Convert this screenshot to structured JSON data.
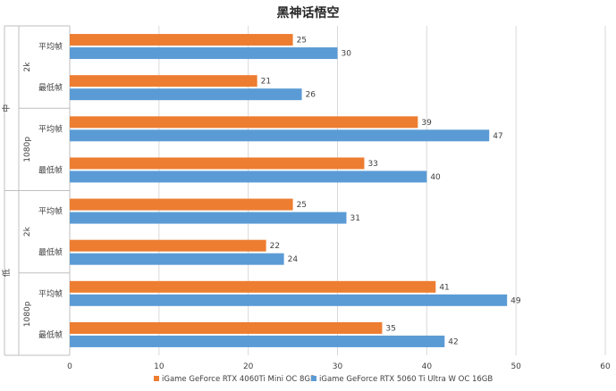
{
  "chart_data": {
    "type": "bar",
    "orientation": "horizontal",
    "title": "黑神话悟空",
    "xlim": [
      0,
      60
    ],
    "xticks": [
      0,
      10,
      20,
      30,
      40,
      50,
      60
    ],
    "grid": true,
    "legend_position": "bottom",
    "colors": {
      "series_1": "#ed7d31",
      "series_2": "#5b9bd5"
    },
    "groups": [
      {
        "level": "中",
        "subgroups": [
          {
            "resolution": "2k",
            "categories": [
              "平均帧",
              "最低帧"
            ]
          },
          {
            "resolution": "1080p",
            "categories": [
              "平均帧",
              "最低帧"
            ]
          }
        ]
      },
      {
        "level": "低",
        "subgroups": [
          {
            "resolution": "2k",
            "categories": [
              "平均帧",
              "最低帧"
            ]
          },
          {
            "resolution": "1080p",
            "categories": [
              "平均帧",
              "最低帧"
            ]
          }
        ]
      }
    ],
    "series": [
      {
        "name": "iGame GeForce RTX 4060Ti Mini OC 8GB",
        "values": [
          25,
          21,
          39,
          33,
          25,
          22,
          41,
          35
        ]
      },
      {
        "name": "iGame GeForce RTX 5060 Ti Ultra W OC 16GB",
        "values": [
          30,
          26,
          47,
          40,
          31,
          24,
          49,
          42
        ]
      }
    ]
  }
}
